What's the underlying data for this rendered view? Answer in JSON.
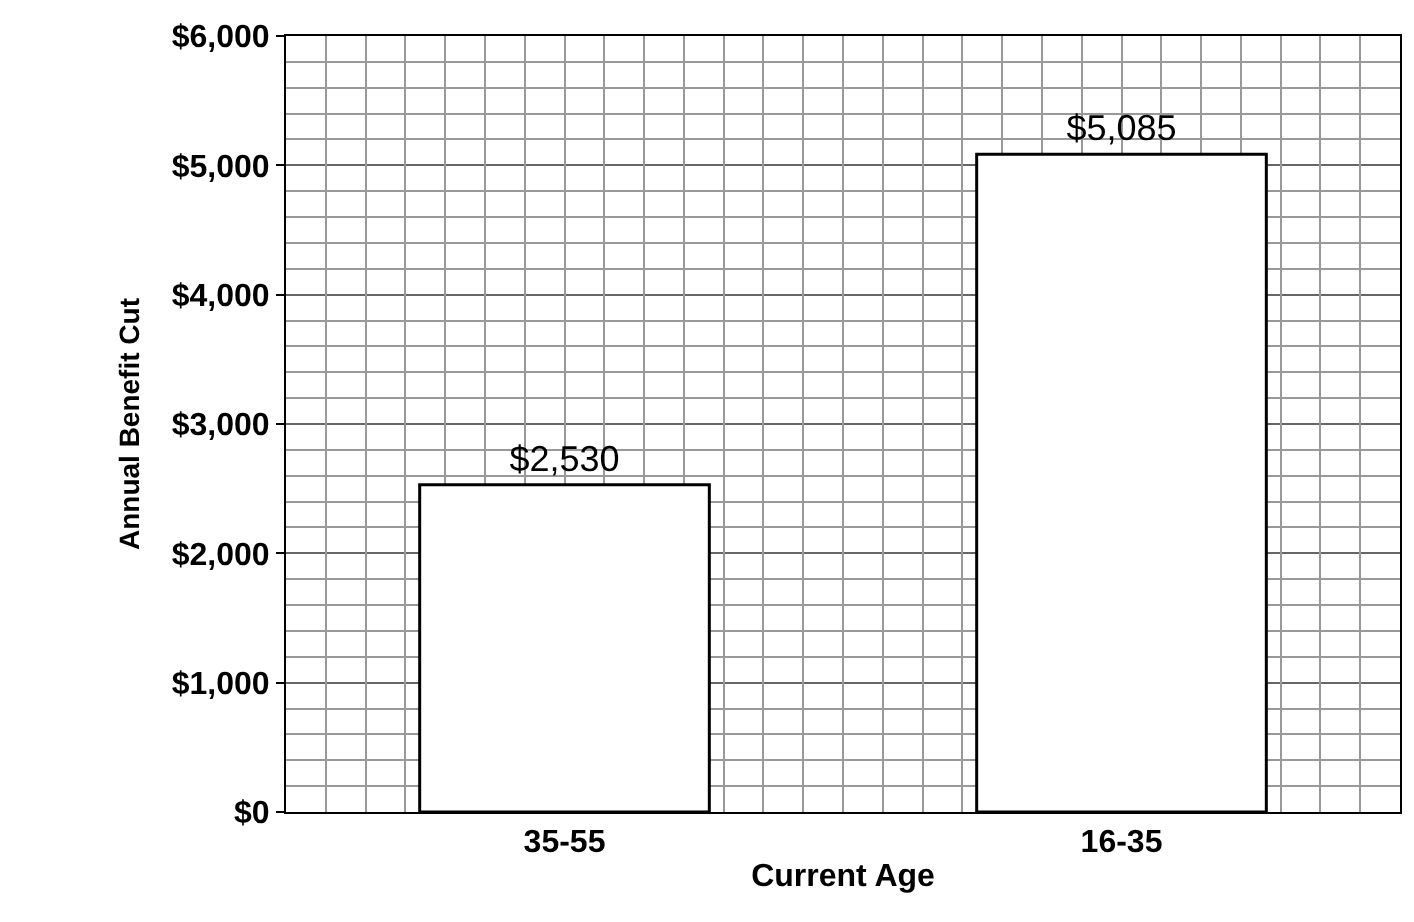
{
  "chart_data": {
    "type": "bar",
    "xlabel": "Current Age",
    "ylabel": "Annual Benefit Cut",
    "categories": [
      "35-55",
      "16-35"
    ],
    "values": [
      2530,
      5085
    ],
    "value_labels": [
      "$2,530",
      "$5,085"
    ],
    "color": "#ffffff",
    "ylim": [
      0,
      6000
    ],
    "yticks": [
      {
        "value": 0,
        "label": "$0"
      },
      {
        "value": 1000,
        "label": "$1,000"
      },
      {
        "value": 2000,
        "label": "$2,000"
      },
      {
        "value": 3000,
        "label": "$3,000"
      },
      {
        "value": 4000,
        "label": "$4,000"
      },
      {
        "value": 5000,
        "label": "$5,000"
      },
      {
        "value": 6000,
        "label": "$6,000"
      }
    ],
    "grid": true,
    "legend": false
  }
}
